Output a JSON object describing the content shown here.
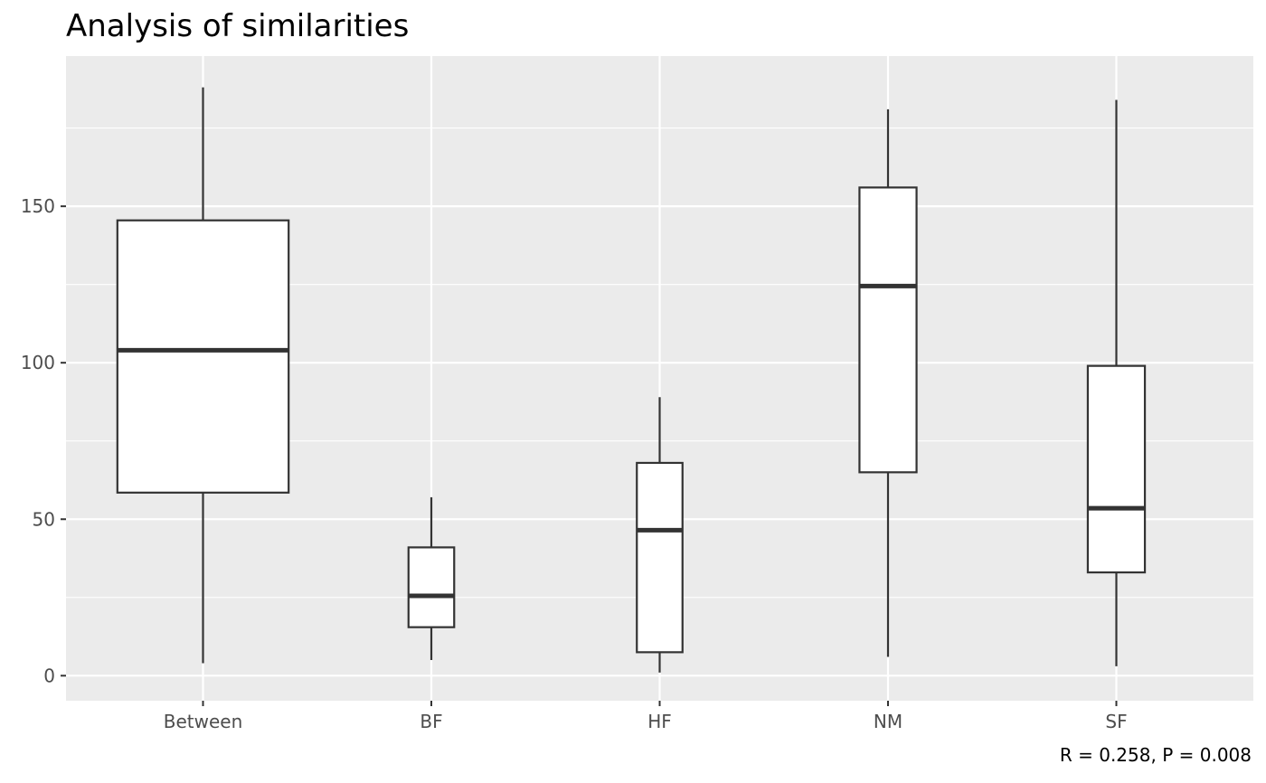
{
  "chart_data": {
    "type": "box",
    "title": "Analysis of similarities",
    "xlabel": "",
    "ylabel": "",
    "caption": "R = 0.258, P = 0.008",
    "categories": [
      "Between",
      "BF",
      "HF",
      "NM",
      "SF"
    ],
    "boxes": [
      {
        "category": "Between",
        "whisker_low": 4,
        "q1": 58.5,
        "median": 104,
        "q3": 145.5,
        "whisker_high": 188
      },
      {
        "category": "BF",
        "whisker_low": 5,
        "q1": 15.5,
        "median": 25.5,
        "q3": 41,
        "whisker_high": 57
      },
      {
        "category": "HF",
        "whisker_low": 1,
        "q1": 7.5,
        "median": 46.5,
        "q3": 68,
        "whisker_high": 89
      },
      {
        "category": "NM",
        "whisker_low": 6,
        "q1": 65,
        "median": 124.5,
        "q3": 156,
        "whisker_high": 181
      },
      {
        "category": "SF",
        "whisker_low": 3,
        "q1": 33,
        "median": 53.5,
        "q3": 99,
        "whisker_high": 184
      }
    ],
    "box_width_fraction": [
      0.75,
      0.2,
      0.2,
      0.25,
      0.25
    ],
    "y_ticks": [
      0,
      50,
      100,
      150
    ],
    "ylim": [
      -8,
      198
    ],
    "grid": true,
    "colors": {
      "panel_background": "#ebebeb",
      "grid_line": "#ffffff",
      "box_fill": "#ffffff",
      "box_line": "#333333"
    }
  }
}
